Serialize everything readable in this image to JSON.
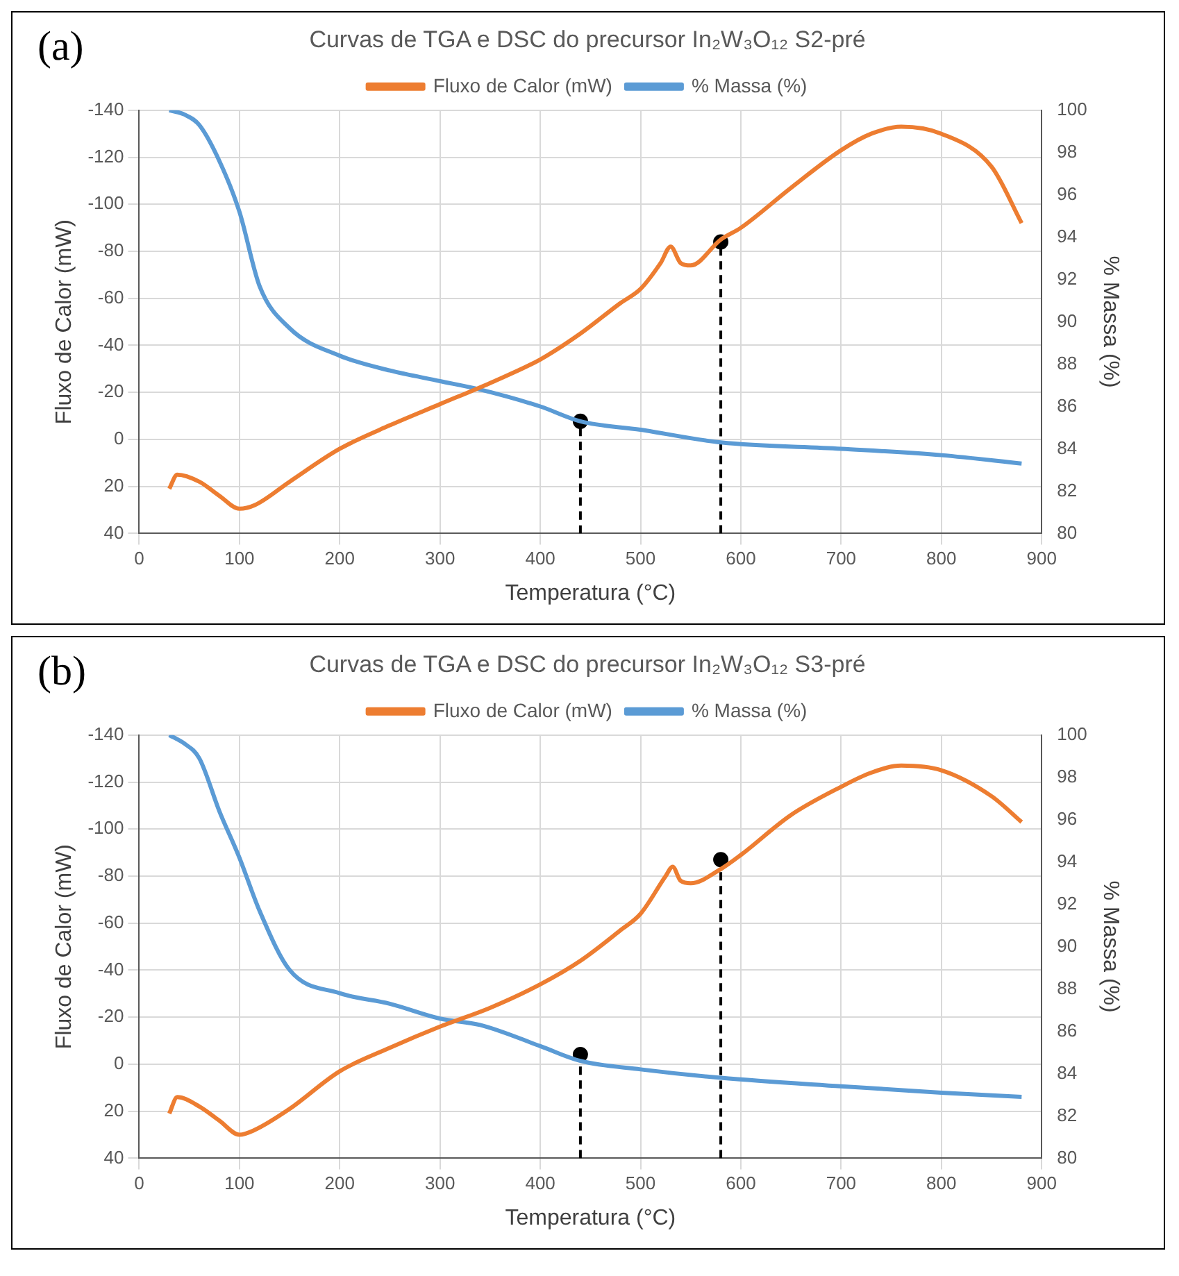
{
  "chart_data": [
    {
      "type": "line",
      "title": "Curvas de TGA e DSC do precursor In₂W₃O₁₂ S2-pré",
      "xlabel": "Temperatura (°C)",
      "ylabel": "Fluxo de Calor (mW)",
      "y2label": "% Massa (%)",
      "annotations": [
        "(a)"
      ],
      "legend": "top",
      "grid": true,
      "marker": "none",
      "xlim": [
        0,
        900
      ],
      "xticks": [
        0,
        100,
        200,
        300,
        400,
        500,
        600,
        700,
        800,
        900
      ],
      "ylim": [
        40,
        -140
      ],
      "yticks": [
        -140,
        -120,
        -100,
        -80,
        -60,
        -40,
        -20,
        0,
        20,
        40
      ],
      "y2lim": [
        80,
        100
      ],
      "y2ticks": [
        80,
        82,
        84,
        86,
        88,
        90,
        92,
        94,
        96,
        98,
        100
      ],
      "series": [
        {
          "name": "Fluxo de Calor (mW)",
          "color": "#ed7d31",
          "x": [
            30,
            38,
            60,
            80,
            100,
            115,
            150,
            200,
            250,
            300,
            350,
            400,
            440,
            480,
            500,
            520,
            530,
            540,
            550,
            580,
            600,
            650,
            700,
            730,
            760,
            800,
            850,
            880
          ],
          "values": [
            21,
            15,
            18,
            24,
            29.5,
            28,
            18,
            4,
            -6,
            -15,
            -24,
            -34,
            -45,
            -58,
            -64,
            -75,
            -82,
            -75,
            -74,
            -85,
            -90,
            -107,
            -123,
            -130,
            -133,
            -130,
            -116,
            -92
          ]
        },
        {
          "name": "% Massa (%)",
          "color": "#5b9bd5",
          "axis": "y2",
          "x": [
            30,
            45,
            60,
            80,
            100,
            120,
            150,
            200,
            250,
            300,
            340,
            400,
            440,
            500,
            580,
            700,
            800,
            880
          ],
          "values": [
            100,
            99.8,
            99.3,
            97.6,
            95.2,
            91.7,
            89.7,
            88.4,
            87.7,
            87.2,
            86.8,
            86,
            85.3,
            84.9,
            84.3,
            84,
            83.7,
            83.3
          ]
        },
        {
          "line_style": "dashed",
          "color": "#000000",
          "axis": "y2",
          "x": [
            440,
            440
          ],
          "values": [
            80,
            85.3
          ]
        },
        {
          "line_style": "dashed",
          "color": "#000000",
          "x": [
            580,
            580
          ],
          "values": [
            40,
            -84
          ]
        },
        {
          "type": "scatter",
          "marker": "circle",
          "color": "#000000",
          "axis": "y2",
          "x": [
            440
          ],
          "values": [
            85.3
          ]
        },
        {
          "type": "scatter",
          "marker": "circle",
          "color": "#000000",
          "x": [
            580
          ],
          "values": [
            -84
          ]
        }
      ]
    },
    {
      "type": "line",
      "title": "Curvas de TGA e DSC do precursor In₂W₃O₁₂ S3-pré",
      "xlabel": "Temperatura (°C)",
      "ylabel": "Fluxo de Calor (mW)",
      "y2label": "% Massa (%)",
      "annotations": [
        "(b)"
      ],
      "legend": "top",
      "grid": true,
      "marker": "none",
      "xlim": [
        0,
        900
      ],
      "xticks": [
        0,
        100,
        200,
        300,
        400,
        500,
        600,
        700,
        800,
        900
      ],
      "ylim": [
        40,
        -140
      ],
      "yticks": [
        -140,
        -120,
        -100,
        -80,
        -60,
        -40,
        -20,
        0,
        20,
        40
      ],
      "y2lim": [
        80,
        100
      ],
      "y2ticks": [
        80,
        82,
        84,
        86,
        88,
        90,
        92,
        94,
        96,
        98,
        100
      ],
      "series": [
        {
          "name": "Fluxo de Calor (mW)",
          "color": "#ed7d31",
          "x": [
            30,
            38,
            60,
            80,
            100,
            115,
            150,
            200,
            250,
            300,
            350,
            400,
            440,
            480,
            500,
            525,
            532,
            540,
            550,
            580,
            600,
            650,
            700,
            730,
            760,
            800,
            850,
            880
          ],
          "values": [
            21,
            14,
            18,
            24,
            30,
            28,
            19,
            3,
            -7,
            -16,
            -24,
            -34,
            -44,
            -57,
            -64,
            -80,
            -84,
            -78,
            -77,
            -83,
            -89,
            -106,
            -118,
            -124,
            -127,
            -125,
            -114,
            -103
          ]
        },
        {
          "name": "% Massa (%)",
          "color": "#5b9bd5",
          "axis": "y2",
          "x": [
            30,
            45,
            60,
            80,
            100,
            120,
            150,
            200,
            250,
            300,
            340,
            400,
            440,
            500,
            580,
            700,
            800,
            880
          ],
          "values": [
            100,
            99.6,
            98.9,
            96.4,
            94.2,
            91.7,
            88.9,
            87.8,
            87.3,
            86.6,
            86.3,
            85.3,
            84.6,
            84.2,
            83.8,
            83.4,
            83.1,
            82.9
          ]
        },
        {
          "line_style": "dashed",
          "color": "#000000",
          "axis": "y2",
          "x": [
            440,
            440
          ],
          "values": [
            80,
            84.9
          ]
        },
        {
          "line_style": "dashed",
          "color": "#000000",
          "x": [
            580,
            580
          ],
          "values": [
            40,
            -87
          ]
        },
        {
          "type": "scatter",
          "marker": "circle",
          "color": "#000000",
          "axis": "y2",
          "x": [
            440
          ],
          "values": [
            84.9
          ]
        },
        {
          "type": "scatter",
          "marker": "circle",
          "color": "#000000",
          "x": [
            580
          ],
          "values": [
            -87
          ]
        }
      ]
    }
  ]
}
